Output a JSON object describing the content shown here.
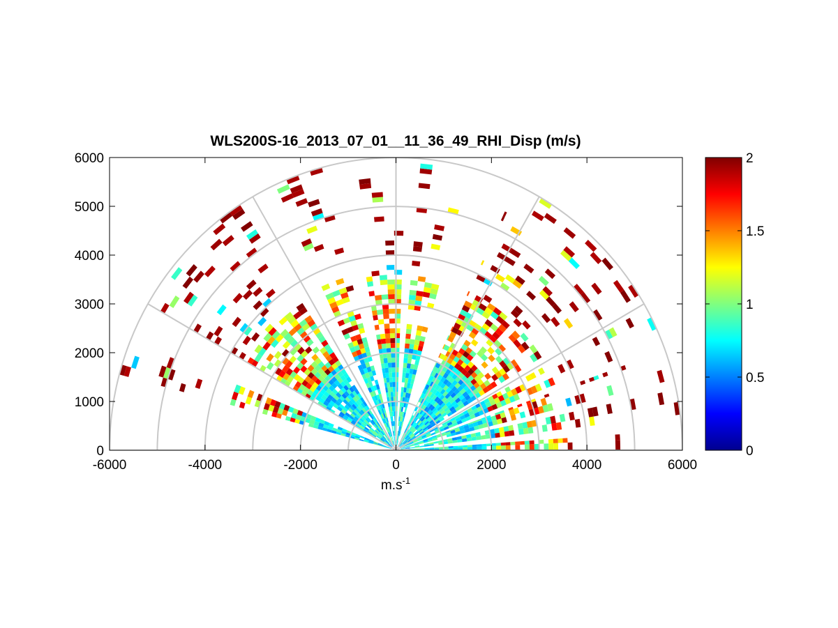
{
  "chart_data": {
    "type": "heatmap",
    "title": "WLS200S-16_2013_07_01__11_36_49_RHI_Disp (m/s)",
    "xlabel_base": "m.s",
    "xlabel_exp": "-1",
    "ylabel": "",
    "xlim": [
      -6000,
      6000
    ],
    "ylim": [
      0,
      6000
    ],
    "x_ticks": [
      "-6000",
      "-4000",
      "-2000",
      "0",
      "2000",
      "4000",
      "6000"
    ],
    "y_ticks": [
      "0",
      "1000",
      "2000",
      "3000",
      "4000",
      "5000",
      "6000"
    ],
    "colorbar": {
      "range": [
        0,
        2
      ],
      "ticks": [
        "0",
        "0.5",
        "1",
        "1.5",
        "2"
      ],
      "colormap": "jet"
    },
    "polar_grid": {
      "ring_ranges_m": [
        1000,
        2000,
        3000,
        4000,
        5000,
        6000
      ],
      "spoke_angles_deg": [
        30,
        60,
        90,
        120,
        150
      ],
      "grid_color": "#c8c8c8"
    },
    "scan": {
      "range_gate_m": 100,
      "max_range_m": 6000,
      "sectors_deg": [
        [
          0,
          4
        ],
        [
          7,
          12
        ],
        [
          14,
          20
        ],
        [
          22,
          29
        ],
        [
          32,
          65
        ],
        [
          75,
          85
        ],
        [
          88,
          100
        ],
        [
          105,
          115
        ],
        [
          123,
          150
        ],
        [
          158,
          165
        ]
      ],
      "near_field_median": 0.75,
      "far_field_median": 1.95
    },
    "sample_points": [
      {
        "x": 1100,
        "y": 3300,
        "v": 2.0
      },
      {
        "x": 5100,
        "y": 2600,
        "v": 0.4
      },
      {
        "x": -5200,
        "y": 1500,
        "v": 1.9
      },
      {
        "x": 0,
        "y": 1800,
        "v": 0.7
      },
      {
        "x": -1800,
        "y": 2100,
        "v": 0.8
      },
      {
        "x": 3800,
        "y": 3700,
        "v": 1.0
      }
    ]
  }
}
